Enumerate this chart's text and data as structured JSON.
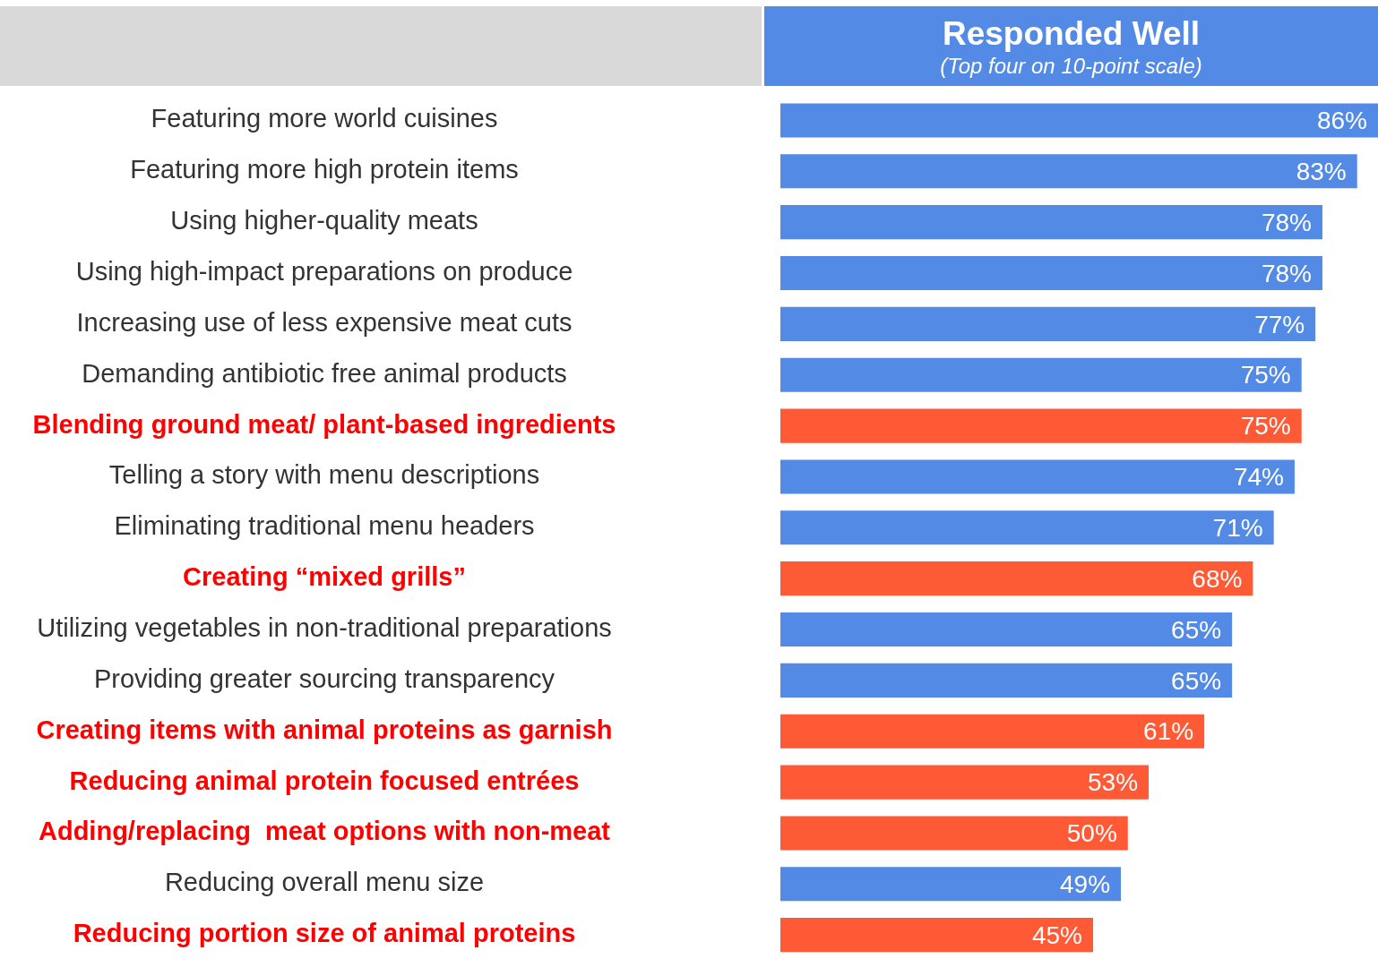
{
  "chart_data": {
    "type": "bar",
    "orientation": "horizontal",
    "title": "Responded Well",
    "subtitle": "(Top four on 10-point scale)",
    "categories": [
      "Featuring more world cuisines",
      "Featuring more high protein items",
      "Using higher-quality meats",
      "Using high-impact preparations on produce",
      "Increasing use of less expensive meat cuts",
      "Demanding antibiotic free animal products",
      "Blending ground meat/ plant-based ingredients",
      "Telling a story with menu descriptions",
      "Eliminating traditional menu headers",
      "Creating “mixed grills”",
      "Utilizing vegetables in non-traditional preparations",
      "Providing greater sourcing transparency",
      "Creating items with animal proteins as garnish",
      "Reducing animal protein focused entrées",
      "Adding/replacing  meat options with non-meat",
      "Reducing overall menu size",
      "Reducing portion size of animal proteins"
    ],
    "values": [
      86,
      83,
      78,
      78,
      77,
      75,
      75,
      74,
      71,
      68,
      65,
      65,
      61,
      53,
      50,
      49,
      45
    ],
    "colors": [
      "#528ae6",
      "#528ae6",
      "#528ae6",
      "#528ae6",
      "#528ae6",
      "#528ae6",
      "#ff5a36",
      "#528ae6",
      "#528ae6",
      "#ff5a36",
      "#528ae6",
      "#528ae6",
      "#ff5a36",
      "#ff5a36",
      "#ff5a36",
      "#528ae6",
      "#ff5a36"
    ],
    "value_labels": [
      "86%",
      "83%",
      "78%",
      "78%",
      "77%",
      "75%",
      "75%",
      "74%",
      "71%",
      "68%",
      "65%",
      "65%",
      "61%",
      "53%",
      "50%",
      "49%",
      "45%"
    ],
    "xlim": [
      0,
      86
    ],
    "tick_labels": "y"
  }
}
